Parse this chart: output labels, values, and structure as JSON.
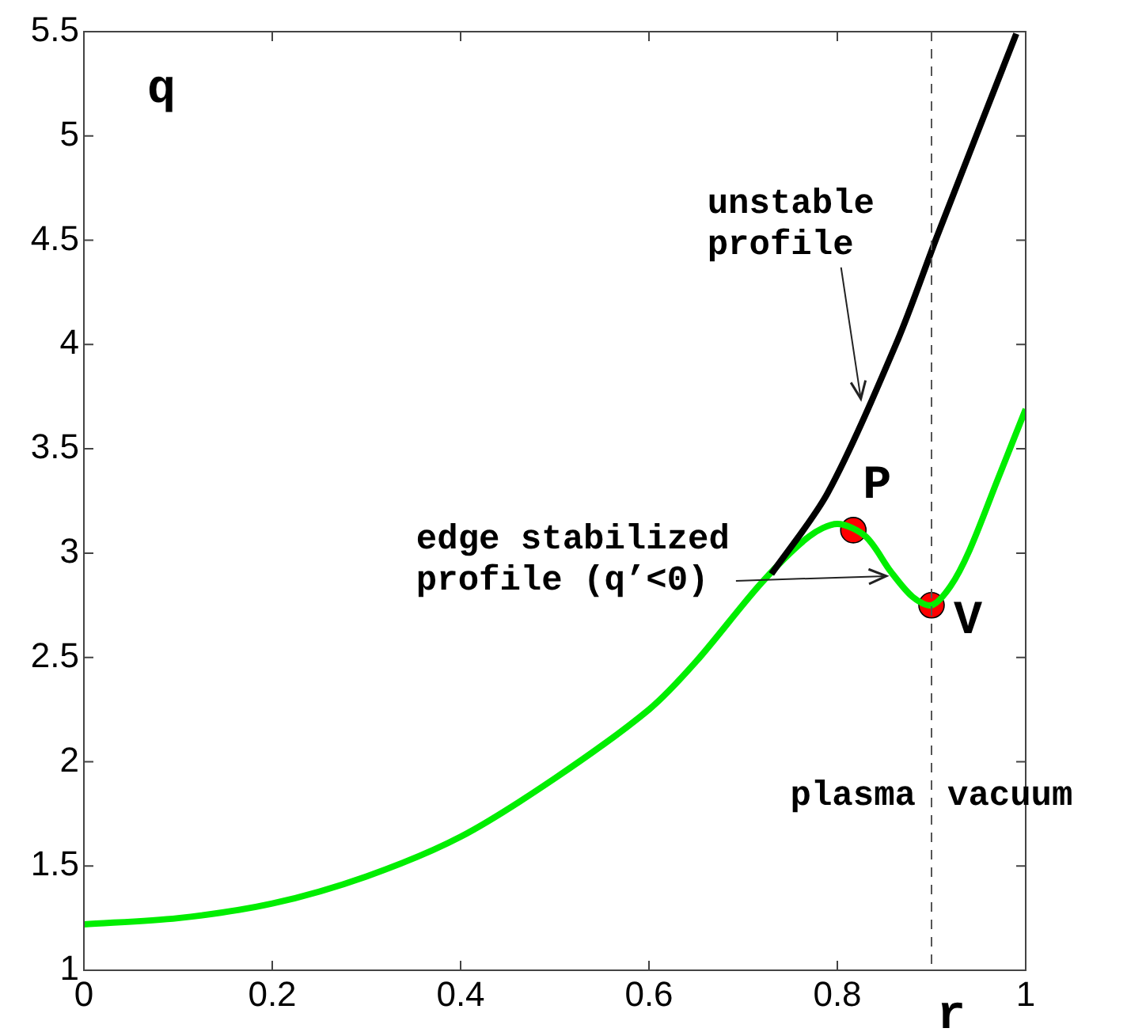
{
  "chart_data": {
    "type": "line",
    "xlabel": "r",
    "ylabel": "q",
    "xlim": [
      0,
      1
    ],
    "ylim": [
      1,
      5.5
    ],
    "xticks": [
      0,
      0.2,
      0.4,
      0.6,
      0.8,
      1
    ],
    "yticks": [
      1,
      1.5,
      2,
      2.5,
      3,
      3.5,
      4,
      4.5,
      5,
      5.5
    ],
    "grid": false,
    "legend": false,
    "series": [
      {
        "color": "#000000",
        "x": [
          0.73,
          0.79,
          0.864,
          0.906,
          0.99
        ],
        "values": [
          2.9,
          3.29,
          4.02,
          4.52,
          5.49
        ]
      },
      {
        "color": "#00ee00",
        "x": [
          0,
          0.1,
          0.2,
          0.3,
          0.4,
          0.5,
          0.6,
          0.65,
          0.72,
          0.77,
          0.8,
          0.83,
          0.857,
          0.88,
          0.9,
          0.92,
          0.94,
          0.97,
          1.0
        ],
        "values": [
          1.22,
          1.25,
          1.32,
          1.45,
          1.64,
          1.92,
          2.25,
          2.48,
          2.86,
          3.08,
          3.14,
          3.08,
          2.91,
          2.79,
          2.75,
          2.84,
          3.01,
          3.35,
          3.69
        ]
      },
      {
        "type": "scatter",
        "color": "#ff0000",
        "marker": "circle",
        "x": [
          0.817,
          0.9
        ],
        "values": [
          3.11,
          2.75
        ]
      }
    ],
    "ref_lines": [
      {
        "axis": "x",
        "value": 0.9,
        "label": "plasma vacuum",
        "color": "#555555",
        "line_style": "dashed"
      }
    ],
    "annotations": [
      {
        "text": "unstable\nprofile",
        "x": 0.83,
        "y": 3.74
      },
      {
        "text": "edge stabilized\nprofile (q’<0)",
        "x": 0.857,
        "y": 2.89
      },
      {
        "text": "P",
        "x": 0.817,
        "y": 3.11
      },
      {
        "text": "V",
        "x": 0.9,
        "y": 2.75
      }
    ]
  }
}
